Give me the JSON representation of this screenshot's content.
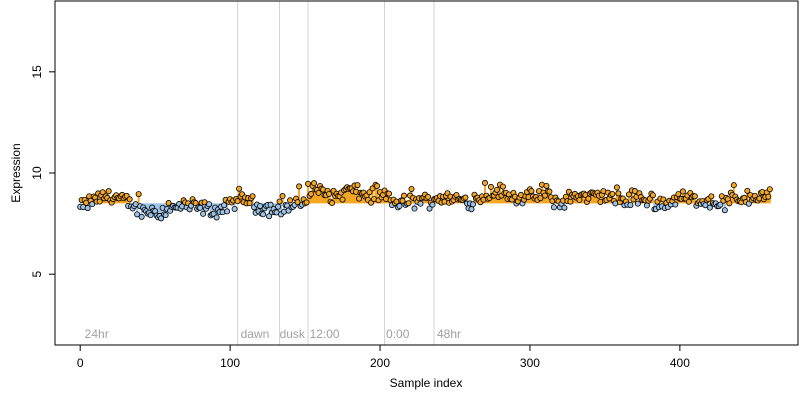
{
  "chart_data": {
    "type": "scatter",
    "title": "",
    "xlabel": "Sample index",
    "ylabel": "Expression",
    "xlim": [
      -16.8,
      478.8
    ],
    "ylim": [
      1.5,
      18.5
    ],
    "x_ticks": [
      0,
      100,
      200,
      300,
      400
    ],
    "y_ticks": [
      5,
      10,
      15
    ],
    "x_tick_labels": [
      "0",
      "100",
      "200",
      "300",
      "400"
    ],
    "y_tick_labels": [
      "5",
      "10",
      "15"
    ],
    "baseline": 8.5,
    "grid": false,
    "legend": "none",
    "phase_lines": [
      105,
      133,
      152,
      203,
      236
    ],
    "phase_labels": [
      {
        "text": "24hr",
        "x": 3
      },
      {
        "text": "dawn",
        "x": 107
      },
      {
        "text": "dusk",
        "x": 133
      },
      {
        "text": "12:00",
        "x": 153
      },
      {
        "text": "0:00",
        "x": 204
      },
      {
        "text": "48hr",
        "x": 238
      }
    ],
    "colors": {
      "above": "#f5a623",
      "below": "#9ec3e6",
      "point_stroke": "#000000",
      "phase_line": "#d3d3d3"
    },
    "anchors": {
      "x": [
        0,
        10,
        20,
        30,
        40,
        50,
        60,
        70,
        80,
        90,
        100,
        110,
        120,
        130,
        140,
        150,
        155,
        160,
        170,
        180,
        190,
        200,
        210,
        220,
        230,
        240,
        250,
        260,
        270,
        280,
        290,
        300,
        310,
        320,
        330,
        340,
        350,
        360,
        370,
        380,
        390,
        400,
        410,
        420,
        430,
        440,
        450,
        460
      ],
      "y": [
        8.3,
        8.7,
        8.9,
        8.6,
        8.2,
        8.0,
        8.2,
        8.4,
        8.3,
        8.1,
        8.4,
        8.7,
        8.3,
        8.2,
        8.4,
        8.6,
        9.3,
        9.1,
        8.8,
        9.2,
        8.9,
        8.8,
        8.5,
        8.6,
        8.6,
        8.8,
        8.7,
        8.6,
        8.9,
        9.1,
        8.8,
        8.8,
        8.9,
        8.5,
        8.9,
        8.8,
        8.9,
        8.6,
        8.7,
        8.6,
        8.5,
        8.8,
        8.7,
        8.6,
        8.5,
        8.7,
        8.8,
        8.9
      ]
    },
    "n_points": 461
  }
}
